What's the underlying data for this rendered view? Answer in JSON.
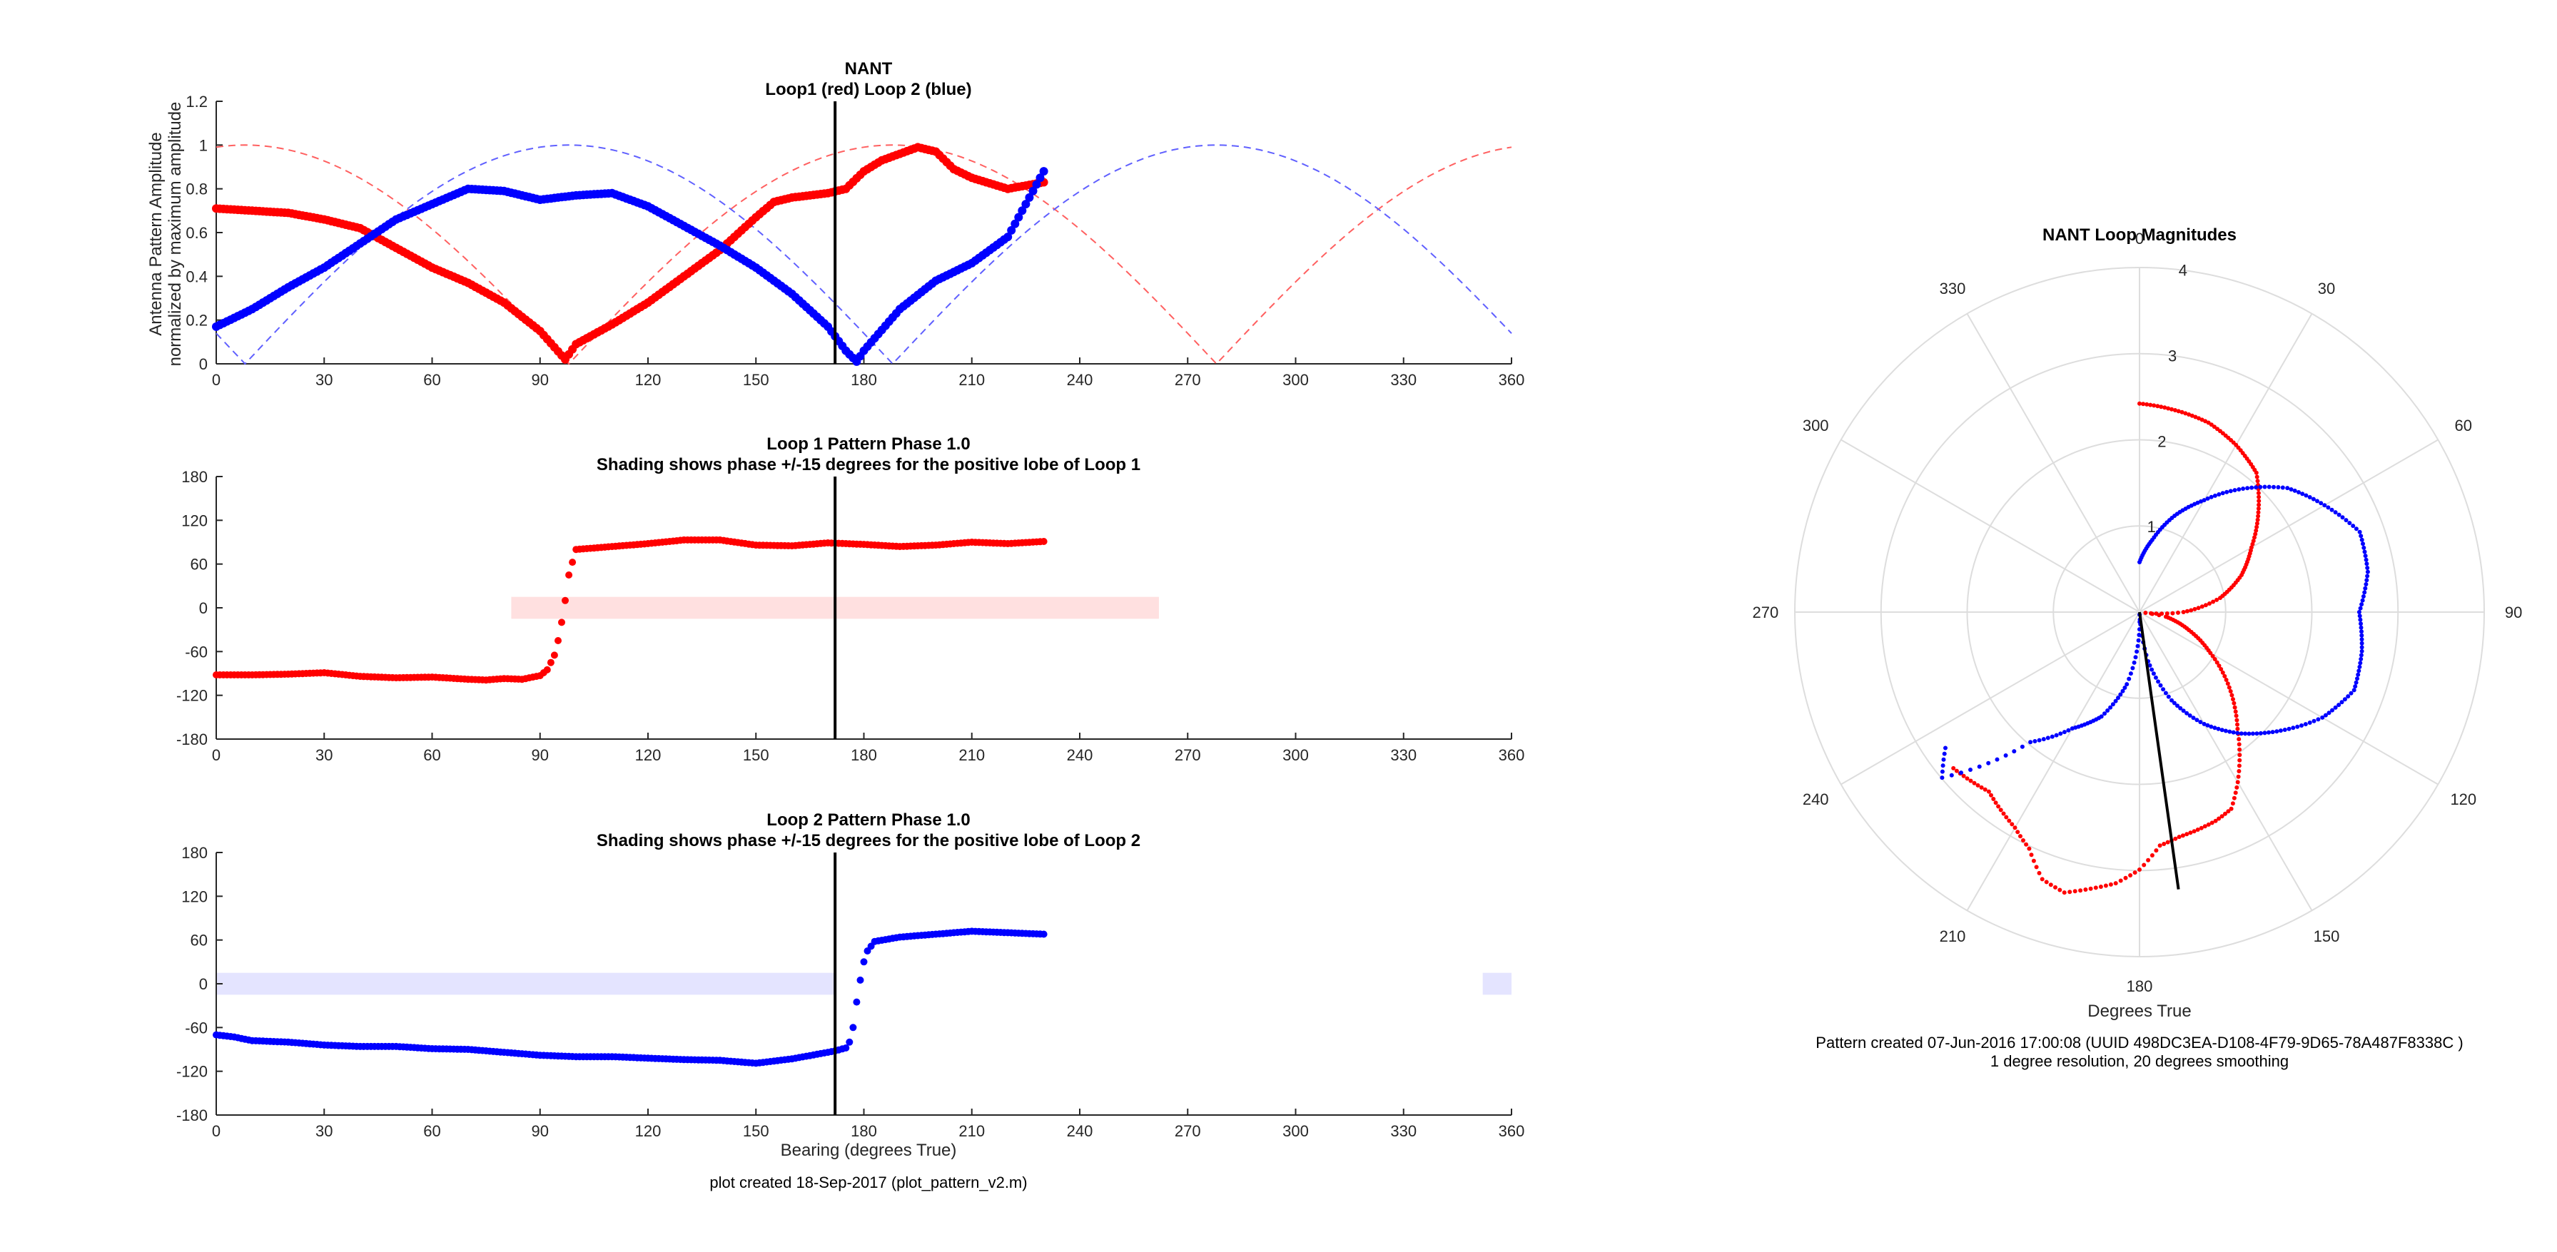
{
  "chart_data": [
    {
      "type": "scatter",
      "id": "amplitude",
      "title": "NANT",
      "subtitle": "Loop1 (red) Loop 2 (blue)",
      "xlabel": "",
      "ylabel": "Antenna Pattern Amplitude",
      "ylabel2": "normalized by maximum amplitude",
      "xlim": [
        0,
        360
      ],
      "ylim": [
        0,
        1.2
      ],
      "xticks": [
        0,
        30,
        60,
        90,
        120,
        150,
        180,
        210,
        240,
        270,
        300,
        330,
        360
      ],
      "yticks": [
        0,
        0.2,
        0.4,
        0.6,
        0.8,
        1,
        1.2
      ],
      "bearing_line": 172,
      "colors": {
        "loop1": "#ff0000",
        "loop2": "#0000ff",
        "ideal1": "#ff6060",
        "ideal2": "#6060ff"
      },
      "series": [
        {
          "x": [
            0,
            10,
            20,
            30,
            40,
            50,
            60,
            70,
            80,
            90,
            97,
            100,
            110,
            120,
            130,
            140,
            150,
            155,
            160,
            170,
            175,
            180,
            185,
            190,
            195,
            200,
            205,
            210,
            220,
            230
          ],
          "y": [
            0.71,
            0.7,
            0.69,
            0.66,
            0.62,
            0.53,
            0.44,
            0.37,
            0.28,
            0.15,
            0.02,
            0.09,
            0.18,
            0.28,
            0.4,
            0.52,
            0.67,
            0.74,
            0.76,
            0.78,
            0.8,
            0.88,
            0.93,
            0.96,
            0.99,
            0.97,
            0.89,
            0.85,
            0.8,
            0.83
          ]
        },
        {
          "x": [
            0,
            10,
            20,
            30,
            40,
            50,
            60,
            70,
            80,
            90,
            100,
            110,
            120,
            130,
            140,
            150,
            160,
            170,
            175,
            178,
            180,
            190,
            200,
            210,
            220,
            230
          ],
          "y": [
            0.17,
            0.25,
            0.35,
            0.44,
            0.55,
            0.66,
            0.73,
            0.8,
            0.79,
            0.75,
            0.77,
            0.78,
            0.72,
            0.63,
            0.54,
            0.44,
            0.32,
            0.17,
            0.06,
            0.01,
            0.06,
            0.25,
            0.38,
            0.46,
            0.58,
            0.88
          ]
        }
      ]
    },
    {
      "type": "scatter",
      "id": "phase1",
      "title": "Loop 1 Pattern Phase 1.0",
      "subtitle": "Shading shows phase +/-15 degrees for the positive lobe of Loop 1",
      "xlabel": "",
      "ylabel": "",
      "xlim": [
        0,
        360
      ],
      "ylim": [
        -180,
        180
      ],
      "xticks": [
        0,
        30,
        60,
        90,
        120,
        150,
        180,
        210,
        240,
        270,
        300,
        330,
        360
      ],
      "yticks": [
        -180,
        -120,
        -60,
        0,
        60,
        120,
        180
      ],
      "bearing_line": 172,
      "shade": {
        "x0": 82,
        "x1": 262,
        "y0": -15,
        "y1": 15,
        "color": "#ffe0e0"
      },
      "color": "#ff0000",
      "series": [
        {
          "x": [
            0,
            10,
            20,
            30,
            40,
            50,
            60,
            70,
            75,
            80,
            85,
            90,
            92,
            94,
            95,
            96,
            97,
            98,
            100,
            110,
            120,
            130,
            140,
            150,
            160,
            170,
            180,
            190,
            200,
            210,
            220,
            230
          ],
          "y": [
            -92,
            -92,
            -91,
            -89,
            -94,
            -96,
            -95,
            -98,
            -99,
            -97,
            -98,
            -93,
            -85,
            -65,
            -45,
            -20,
            10,
            45,
            80,
            84,
            88,
            93,
            93,
            86,
            85,
            89,
            87,
            84,
            86,
            90,
            88,
            91
          ]
        }
      ]
    },
    {
      "type": "scatter",
      "id": "phase2",
      "title": "Loop 2 Pattern Phase 1.0",
      "subtitle": "Shading shows phase +/-15 degrees for the positive lobe of Loop 2",
      "xlabel": "Bearing (degrees True)",
      "ylabel": "",
      "xlim": [
        0,
        360
      ],
      "ylim": [
        -180,
        180
      ],
      "xticks": [
        0,
        30,
        60,
        90,
        120,
        150,
        180,
        210,
        240,
        270,
        300,
        330,
        360
      ],
      "yticks": [
        -180,
        -120,
        -60,
        0,
        60,
        120,
        180
      ],
      "bearing_line": 172,
      "shades": [
        {
          "x0": 0,
          "x1": 172,
          "y0": -15,
          "y1": 15,
          "color": "#e4e4ff"
        },
        {
          "x0": 352,
          "x1": 360,
          "y0": -15,
          "y1": 15,
          "color": "#e4e4ff"
        }
      ],
      "color": "#0000ff",
      "series": [
        {
          "x": [
            0,
            5,
            10,
            20,
            30,
            40,
            50,
            60,
            70,
            80,
            90,
            100,
            110,
            120,
            130,
            140,
            150,
            160,
            170,
            172,
            175,
            176,
            177,
            178,
            179,
            180,
            181,
            183,
            190,
            200,
            210,
            220,
            230
          ],
          "y": [
            -70,
            -73,
            -78,
            -80,
            -84,
            -86,
            -86,
            -89,
            -90,
            -94,
            -98,
            -100,
            -100,
            -102,
            -104,
            -105,
            -109,
            -103,
            -94,
            -92,
            -88,
            -80,
            -60,
            -25,
            5,
            30,
            45,
            58,
            64,
            68,
            72,
            70,
            68
          ]
        }
      ]
    },
    {
      "type": "polar",
      "id": "polar",
      "title": "NANT Loop Magnitudes",
      "xlabel": "Degrees True",
      "rlim": [
        0,
        4
      ],
      "rticks": [
        1,
        2,
        3,
        4
      ],
      "angle_ticks": [
        0,
        30,
        60,
        90,
        120,
        150,
        180,
        210,
        240,
        270,
        300,
        330
      ],
      "bearing_line": 172,
      "bearing_line_r": 3.25,
      "colors": {
        "loop1": "#ff0000",
        "loop2": "#0000ff"
      },
      "series": [
        {
          "theta": [
            0,
            10,
            20,
            30,
            40,
            50,
            60,
            70,
            80,
            90,
            97,
            100,
            110,
            120,
            130,
            140,
            150,
            155,
            160,
            170,
            175,
            180,
            185,
            190,
            195,
            200,
            205,
            210,
            220,
            230
          ],
          "r": [
            2.42,
            2.38,
            2.34,
            2.24,
            2.11,
            1.8,
            1.5,
            1.26,
            0.95,
            0.51,
            0.07,
            0.31,
            0.61,
            0.95,
            1.36,
            1.77,
            2.28,
            2.52,
            2.58,
            2.65,
            2.72,
            2.99,
            3.16,
            3.26,
            3.37,
            3.3,
            3.03,
            2.89,
            2.72,
            2.82
          ]
        },
        {
          "theta": [
            0,
            10,
            20,
            30,
            40,
            50,
            60,
            70,
            80,
            90,
            100,
            110,
            120,
            130,
            140,
            150,
            160,
            170,
            175,
            178,
            180,
            190,
            200,
            210,
            220,
            230,
            235
          ],
          "r": [
            0.58,
            0.85,
            1.19,
            1.5,
            1.87,
            2.24,
            2.48,
            2.72,
            2.69,
            2.55,
            2.62,
            2.65,
            2.45,
            2.14,
            1.84,
            1.5,
            1.09,
            0.58,
            0.2,
            0.03,
            0.2,
            0.85,
            1.29,
            1.56,
            1.97,
            2.99,
            2.75
          ]
        }
      ]
    }
  ],
  "footer": {
    "plot_created": "plot created 18-Sep-2017 (plot_pattern_v2.m)",
    "pattern_created": "Pattern created 07-Jun-2016 17:00:08 (UUID 498DC3EA-D108-4F79-9D65-78A487F8338C )",
    "resolution": "1 degree resolution, 20 degrees smoothing"
  }
}
